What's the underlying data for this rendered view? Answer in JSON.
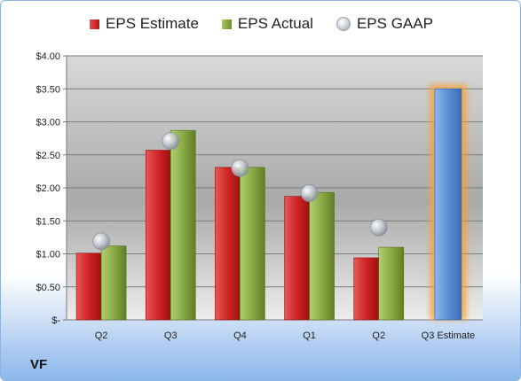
{
  "chart_data": {
    "type": "bar",
    "categories": [
      "Q2",
      "Q3",
      "Q4",
      "Q1",
      "Q2",
      "Q3 Estimate"
    ],
    "series": [
      {
        "name": "EPS Estimate",
        "values": [
          1.01,
          2.57,
          2.31,
          1.87,
          0.94,
          null
        ],
        "color": "#c8201f"
      },
      {
        "name": "EPS Actual",
        "values": [
          1.12,
          2.87,
          2.31,
          1.93,
          1.1,
          null
        ],
        "color": "#8aaa46"
      },
      {
        "name": "EPS GAAP",
        "values": [
          1.19,
          2.71,
          2.3,
          1.92,
          1.4,
          null
        ],
        "color": "#b8bec8"
      }
    ],
    "forecast": {
      "category": "Q3 Estimate",
      "value": 3.5,
      "color": "#5b8fd6",
      "highlight": "#f5a23a"
    },
    "y_tick_labels": [
      "$-",
      "$0.50",
      "$1.00",
      "$1.50",
      "$2.00",
      "$2.50",
      "$3.00",
      "$3.50",
      "$4.00"
    ],
    "ylim": [
      0,
      4
    ],
    "grid": true,
    "legend": "top"
  },
  "company": "VF"
}
